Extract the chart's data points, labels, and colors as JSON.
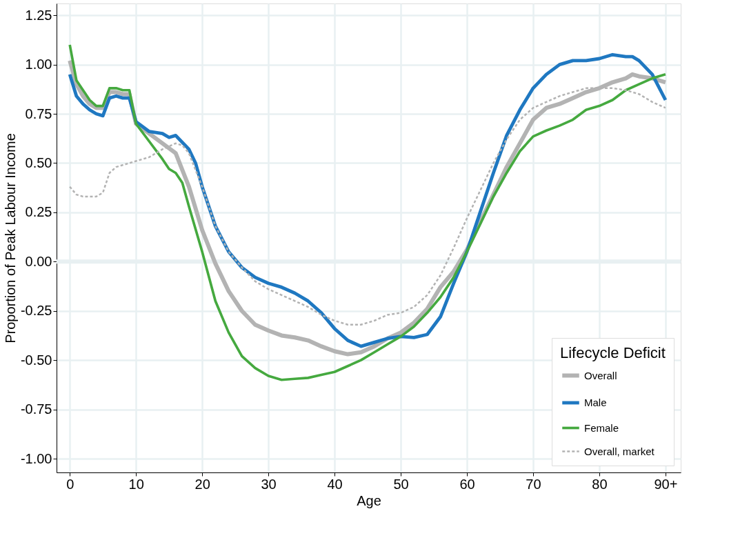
{
  "chart_data": {
    "type": "line",
    "xlabel": "Age",
    "ylabel": "Proportion of Peak Labour Income",
    "legend_title": "Lifecycle Deficit",
    "xlim": [
      -2,
      92.3
    ],
    "ylim": [
      -1.07,
      1.31
    ],
    "xticks": [
      0,
      10,
      20,
      30,
      40,
      50,
      60,
      70,
      80,
      {
        "value": 90,
        "label": "90+"
      }
    ],
    "yticks": [
      {
        "value": -1,
        "label": "-1.00"
      },
      {
        "value": -0.75,
        "label": "-0.75"
      },
      {
        "value": -0.5,
        "label": "-0.50"
      },
      {
        "value": -0.25,
        "label": "-0.25"
      },
      {
        "value": 0,
        "label": "0.00"
      },
      {
        "value": 0.25,
        "label": "0.25"
      },
      {
        "value": 0.5,
        "label": "0.50"
      },
      {
        "value": 0.75,
        "label": "0.75"
      },
      {
        "value": 1,
        "label": "1.00"
      },
      {
        "value": 1.25,
        "label": "1.25"
      }
    ],
    "grid": true,
    "legend": "bottom right",
    "marker": "none",
    "ref_lines": [
      {
        "axis": "y",
        "value": 0,
        "color": "#e8f0f2"
      }
    ],
    "series": [
      {
        "name": "Overall",
        "color": "#b3b3b3",
        "line_style": "solid",
        "x": [
          0,
          1,
          2,
          3,
          4,
          5,
          6,
          7,
          8,
          9,
          10,
          12,
          14,
          16,
          18,
          20,
          22,
          24,
          26,
          28,
          30,
          32,
          34,
          36,
          38,
          40,
          42,
          44,
          46,
          48,
          50,
          52,
          54,
          56,
          58,
          60,
          62,
          64,
          66,
          68,
          70,
          72,
          74,
          76,
          78,
          80,
          82,
          84,
          85,
          86,
          88,
          90
        ],
        "values": [
          1.02,
          0.9,
          0.84,
          0.8,
          0.78,
          0.78,
          0.86,
          0.86,
          0.85,
          0.85,
          0.7,
          0.65,
          0.6,
          0.55,
          0.38,
          0.16,
          -0.01,
          -0.15,
          -0.25,
          -0.32,
          -0.35,
          -0.375,
          -0.385,
          -0.4,
          -0.43,
          -0.455,
          -0.47,
          -0.46,
          -0.43,
          -0.39,
          -0.36,
          -0.31,
          -0.24,
          -0.13,
          -0.05,
          0.06,
          0.2,
          0.34,
          0.48,
          0.6,
          0.72,
          0.78,
          0.8,
          0.83,
          0.86,
          0.88,
          0.91,
          0.93,
          0.95,
          0.94,
          0.93,
          0.91
        ]
      },
      {
        "name": "Male",
        "color": "#1f78c1",
        "line_style": "solid",
        "x": [
          0,
          1,
          2,
          3,
          4,
          5,
          6,
          7,
          8,
          9,
          10,
          12,
          14,
          15,
          16,
          18,
          19,
          20,
          22,
          24,
          26,
          28,
          30,
          32,
          34,
          36,
          38,
          40,
          42,
          44,
          46,
          48,
          50,
          52,
          54,
          56,
          58,
          60,
          62,
          64,
          66,
          68,
          70,
          72,
          74,
          76,
          78,
          80,
          82,
          84,
          85,
          86,
          88,
          90
        ],
        "values": [
          0.95,
          0.84,
          0.8,
          0.77,
          0.75,
          0.74,
          0.83,
          0.84,
          0.83,
          0.83,
          0.71,
          0.66,
          0.65,
          0.63,
          0.64,
          0.57,
          0.5,
          0.38,
          0.18,
          0.05,
          -0.03,
          -0.08,
          -0.11,
          -0.13,
          -0.16,
          -0.2,
          -0.26,
          -0.34,
          -0.4,
          -0.43,
          -0.41,
          -0.39,
          -0.38,
          -0.385,
          -0.37,
          -0.28,
          -0.11,
          0.05,
          0.25,
          0.45,
          0.64,
          0.77,
          0.88,
          0.95,
          1.0,
          1.02,
          1.02,
          1.03,
          1.05,
          1.04,
          1.04,
          1.02,
          0.95,
          0.82
        ]
      },
      {
        "name": "Female",
        "color": "#45a93f",
        "line_style": "solid",
        "x": [
          0,
          1,
          2,
          3,
          4,
          5,
          6,
          7,
          8,
          9,
          10,
          12,
          14,
          15,
          16,
          17,
          18,
          20,
          22,
          24,
          26,
          28,
          30,
          32,
          34,
          36,
          38,
          40,
          42,
          44,
          46,
          48,
          50,
          52,
          54,
          56,
          58,
          60,
          62,
          64,
          66,
          68,
          70,
          72,
          74,
          76,
          78,
          80,
          82,
          84,
          86,
          88,
          90
        ],
        "values": [
          1.1,
          0.92,
          0.87,
          0.82,
          0.79,
          0.79,
          0.88,
          0.88,
          0.87,
          0.87,
          0.7,
          0.61,
          0.52,
          0.47,
          0.45,
          0.4,
          0.28,
          0.05,
          -0.2,
          -0.36,
          -0.48,
          -0.54,
          -0.58,
          -0.6,
          -0.595,
          -0.59,
          -0.575,
          -0.56,
          -0.53,
          -0.5,
          -0.46,
          -0.42,
          -0.38,
          -0.33,
          -0.26,
          -0.18,
          -0.08,
          0.05,
          0.19,
          0.33,
          0.45,
          0.56,
          0.635,
          0.665,
          0.69,
          0.72,
          0.77,
          0.79,
          0.82,
          0.87,
          0.9,
          0.93,
          0.95
        ]
      },
      {
        "name": "Overall, market",
        "color": "#b3b3b3",
        "line_style": "dashed",
        "x": [
          0,
          1,
          2,
          3,
          4,
          5,
          6,
          7,
          8,
          9,
          10,
          12,
          14,
          16,
          17,
          18,
          20,
          22,
          24,
          26,
          28,
          30,
          32,
          34,
          36,
          38,
          40,
          42,
          44,
          46,
          48,
          50,
          52,
          54,
          56,
          58,
          60,
          62,
          64,
          66,
          68,
          70,
          72,
          74,
          76,
          78,
          80,
          82,
          84,
          86,
          88,
          90
        ],
        "values": [
          0.38,
          0.34,
          0.33,
          0.33,
          0.33,
          0.35,
          0.45,
          0.48,
          0.49,
          0.5,
          0.51,
          0.53,
          0.57,
          0.6,
          0.59,
          0.55,
          0.38,
          0.18,
          0.05,
          -0.03,
          -0.1,
          -0.14,
          -0.17,
          -0.2,
          -0.23,
          -0.27,
          -0.3,
          -0.32,
          -0.32,
          -0.3,
          -0.27,
          -0.26,
          -0.23,
          -0.17,
          -0.07,
          0.07,
          0.22,
          0.36,
          0.5,
          0.62,
          0.72,
          0.78,
          0.81,
          0.84,
          0.86,
          0.88,
          0.88,
          0.88,
          0.87,
          0.85,
          0.81,
          0.78
        ]
      }
    ]
  }
}
